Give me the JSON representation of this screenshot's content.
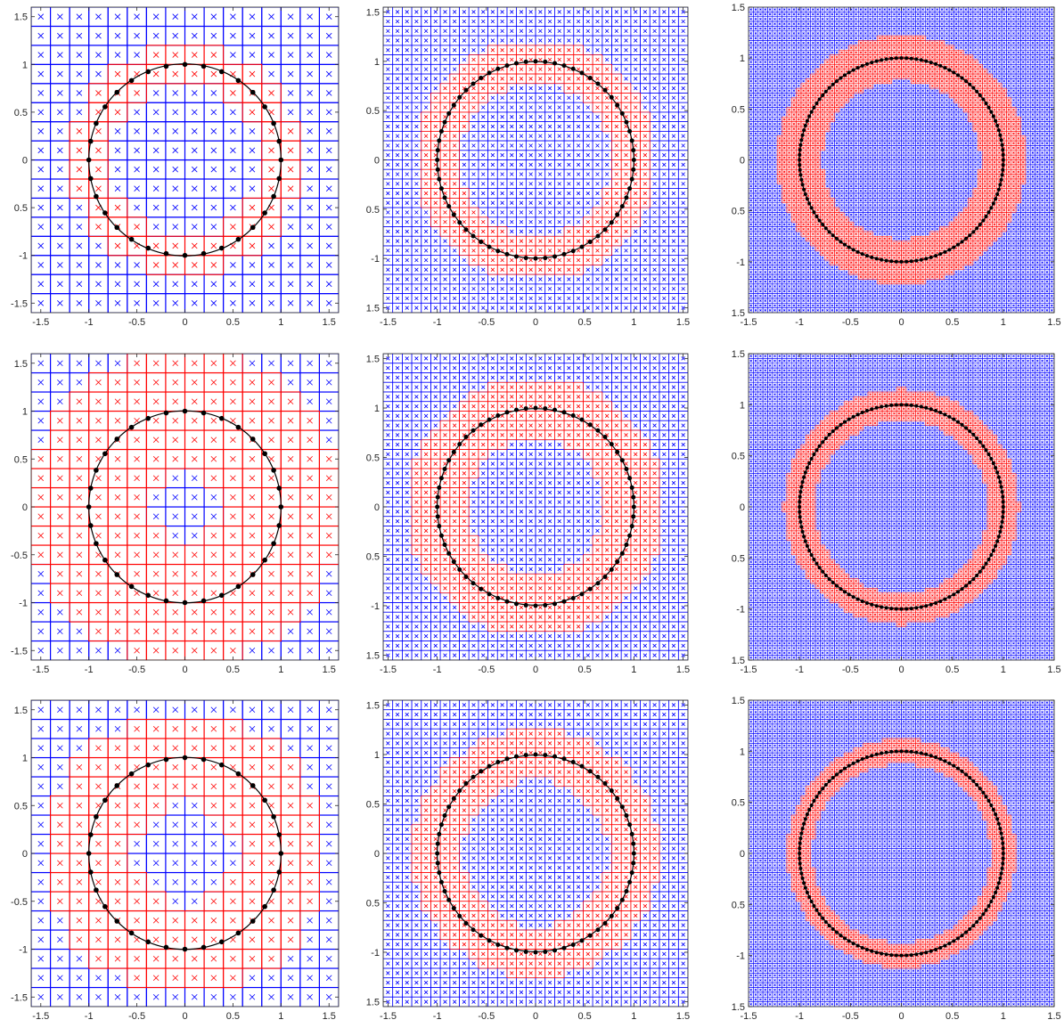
{
  "figure": {
    "colors": {
      "grid_inactive": "#0000ff",
      "grid_active": "#ff0000",
      "marker_inactive": "#0000ff",
      "marker_active": "#ff0000",
      "circle": "#000000",
      "points": "#000000",
      "axes": "#262626"
    },
    "marker": "x-cross"
  },
  "chart_data": [
    {
      "type": "grid-overlay",
      "row": 1,
      "col": 1,
      "grid_cells": 16,
      "circle_points": 32,
      "marked_band_width": 0.2,
      "circle": {
        "center": [
          0,
          0
        ],
        "radius": 1
      },
      "xlim": [
        -1.6,
        1.6
      ],
      "ylim": [
        -1.6,
        1.6
      ],
      "xticks": [
        "-1.5",
        "-1",
        "-0.5",
        "0",
        "0.5",
        "1",
        "1.5"
      ],
      "yticks": [
        "1.5",
        "1",
        "0.5",
        "0",
        "0.5",
        "-1",
        "-1.5"
      ],
      "grid": true
    },
    {
      "type": "grid-overlay",
      "row": 1,
      "col": 2,
      "grid_cells": 32,
      "circle_points": 64,
      "marked_band_width": 0.2,
      "circle": {
        "center": [
          0,
          0
        ],
        "radius": 1
      },
      "xlim": [
        -1.55,
        1.55
      ],
      "ylim": [
        -1.55,
        1.55
      ],
      "xticks": [
        "-1.5",
        "-1",
        "-0.5",
        "0",
        "0.5",
        "1",
        "1.5"
      ],
      "yticks": [
        "1.5",
        "1",
        "0.5",
        "0",
        "0.5",
        "-1",
        "1.5"
      ],
      "grid": true
    },
    {
      "type": "grid-overlay",
      "row": 1,
      "col": 3,
      "grid_cells": 64,
      "circle_points": 128,
      "marked_band_width": 0.22,
      "circle": {
        "center": [
          0,
          0
        ],
        "radius": 1
      },
      "xlim": [
        -1.5,
        1.5
      ],
      "ylim": [
        -1.5,
        1.5
      ],
      "xticks": [
        "-1.5",
        "-1",
        "-0.5",
        "0",
        "0.5",
        "1",
        "1.5"
      ],
      "yticks": [
        "1.5",
        "1",
        "0.5",
        "0",
        "0.5",
        "-1",
        "1.5"
      ],
      "grid": true
    },
    {
      "type": "grid-overlay",
      "row": 2,
      "col": 1,
      "grid_cells": 16,
      "circle_points": 32,
      "marked_band_width": 0.6,
      "circle": {
        "center": [
          0,
          0
        ],
        "radius": 1
      },
      "xlim": [
        -1.6,
        1.6
      ],
      "ylim": [
        -1.6,
        1.6
      ],
      "xticks": [
        "-1.5",
        "-1",
        "-0.5",
        "0",
        "0.5",
        "1",
        "1.5"
      ],
      "yticks": [
        "1.5",
        "1",
        "0.5",
        "0",
        "-0.5",
        "-1",
        "-1.5"
      ],
      "grid": true
    },
    {
      "type": "grid-overlay",
      "row": 2,
      "col": 2,
      "grid_cells": 32,
      "circle_points": 64,
      "marked_band_width": 0.3,
      "circle": {
        "center": [
          0,
          0
        ],
        "radius": 1
      },
      "xlim": [
        -1.55,
        1.55
      ],
      "ylim": [
        -1.55,
        1.55
      ],
      "xticks": [
        "-1.5",
        "-1",
        "-0.5",
        "0",
        "0.5",
        "1",
        "1.5"
      ],
      "yticks": [
        "1.5",
        "1",
        "0.5",
        "0",
        "0.5",
        "-1",
        "1.5"
      ],
      "grid": true
    },
    {
      "type": "grid-overlay",
      "row": 2,
      "col": 3,
      "grid_cells": 64,
      "circle_points": 128,
      "marked_band_width": 0.15,
      "circle": {
        "center": [
          0,
          0
        ],
        "radius": 1
      },
      "xlim": [
        -1.5,
        1.5
      ],
      "ylim": [
        -1.5,
        1.5
      ],
      "xticks": [
        "-1.5",
        "-1",
        "-0.5",
        "0",
        "0.5",
        "1",
        "1.5"
      ],
      "yticks": [
        "1.5",
        "1",
        "0.5",
        "0",
        "0.5",
        "-1",
        "1.5"
      ],
      "grid": true
    },
    {
      "type": "grid-overlay",
      "row": 3,
      "col": 1,
      "grid_cells": 16,
      "circle_points": 32,
      "marked_band_width": 0.45,
      "circle": {
        "center": [
          0,
          0
        ],
        "radius": 1
      },
      "xlim": [
        -1.6,
        1.6
      ],
      "ylim": [
        -1.6,
        1.6
      ],
      "xticks": [
        "-1.5",
        "-1",
        "-0.5",
        "0",
        "0.5",
        "1",
        "1.5"
      ],
      "yticks": [
        "1.5",
        "1",
        "0.5",
        "0",
        "-0.5",
        "-1",
        "-1.5"
      ],
      "grid": true
    },
    {
      "type": "grid-overlay",
      "row": 3,
      "col": 2,
      "grid_cells": 32,
      "circle_points": 64,
      "marked_band_width": 0.25,
      "circle": {
        "center": [
          0,
          0
        ],
        "radius": 1
      },
      "xlim": [
        -1.55,
        1.55
      ],
      "ylim": [
        -1.55,
        1.55
      ],
      "xticks": [
        "-1.5",
        "-1",
        "-0.5",
        "0",
        "0.5",
        "1",
        "1.5"
      ],
      "yticks": [
        "1.5",
        "1",
        "0.5",
        "0",
        "0.5",
        "-1",
        "1.5"
      ],
      "grid": true
    },
    {
      "type": "grid-overlay",
      "row": 3,
      "col": 3,
      "grid_cells": 64,
      "circle_points": 128,
      "marked_band_width": 0.12,
      "circle": {
        "center": [
          0,
          0
        ],
        "radius": 1
      },
      "xlim": [
        -1.5,
        1.5
      ],
      "ylim": [
        -1.5,
        1.5
      ],
      "xticks": [
        "-1.5",
        "-1",
        "-0.5",
        "0",
        "0.5",
        "1",
        "1.5"
      ],
      "yticks": [
        "1.5",
        "1",
        "0.5",
        "0",
        "0.5",
        "-1",
        "1.5"
      ],
      "grid": true
    }
  ]
}
